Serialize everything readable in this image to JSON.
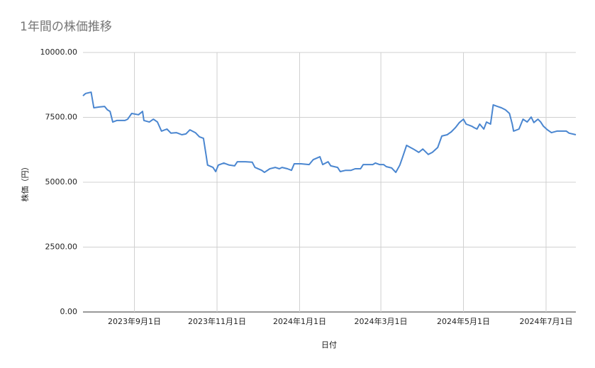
{
  "chart_data": {
    "type": "line",
    "title": "1年間の株価推移",
    "x_label": "日付",
    "y_label": "株価（円）",
    "x": [
      "2023-07-25",
      "2023-07-27",
      "2023-07-31",
      "2023-08-02",
      "2023-08-06",
      "2023-08-10",
      "2023-08-12",
      "2023-08-14",
      "2023-08-16",
      "2023-08-19",
      "2023-08-25",
      "2023-08-27",
      "2023-08-30",
      "2023-09-04",
      "2023-09-07",
      "2023-09-08",
      "2023-09-12",
      "2023-09-15",
      "2023-09-18",
      "2023-09-21",
      "2023-09-25",
      "2023-09-28",
      "2023-10-02",
      "2023-10-06",
      "2023-10-09",
      "2023-10-12",
      "2023-10-16",
      "2023-10-19",
      "2023-10-22",
      "2023-10-24",
      "2023-10-25",
      "2023-10-29",
      "2023-10-31",
      "2023-11-02",
      "2023-11-06",
      "2023-11-10",
      "2023-11-14",
      "2023-11-16",
      "2023-11-22",
      "2023-11-27",
      "2023-11-29",
      "2023-12-04",
      "2023-12-06",
      "2023-12-10",
      "2023-12-14",
      "2023-12-17",
      "2023-12-19",
      "2023-12-23",
      "2023-12-26",
      "2023-12-28",
      "2024-01-02",
      "2024-01-08",
      "2024-01-11",
      "2024-01-16",
      "2024-01-18",
      "2024-01-22",
      "2024-01-24",
      "2024-01-29",
      "2024-01-31",
      "2024-02-04",
      "2024-02-08",
      "2024-02-11",
      "2024-02-15",
      "2024-02-17",
      "2024-02-20",
      "2024-02-24",
      "2024-02-26",
      "2024-02-29",
      "2024-03-03",
      "2024-03-05",
      "2024-03-09",
      "2024-03-12",
      "2024-03-15",
      "2024-03-17",
      "2024-03-20",
      "2024-03-25",
      "2024-03-29",
      "2024-04-01",
      "2024-04-05",
      "2024-04-08",
      "2024-04-12",
      "2024-04-15",
      "2024-04-19",
      "2024-04-22",
      "2024-04-25",
      "2024-04-28",
      "2024-05-01",
      "2024-05-03",
      "2024-05-07",
      "2024-05-09",
      "2024-05-11",
      "2024-05-13",
      "2024-05-16",
      "2024-05-18",
      "2024-05-21",
      "2024-05-23",
      "2024-05-26",
      "2024-05-29",
      "2024-06-01",
      "2024-06-04",
      "2024-06-06",
      "2024-06-07",
      "2024-06-11",
      "2024-06-14",
      "2024-06-17",
      "2024-06-20",
      "2024-06-22",
      "2024-06-25",
      "2024-06-27",
      "2024-06-29",
      "2024-07-02",
      "2024-07-05",
      "2024-07-09",
      "2024-07-13",
      "2024-07-16",
      "2024-07-18",
      "2024-07-23"
    ],
    "series": [
      {
        "name": "株価",
        "color": "#4a86d0",
        "values": [
          8330,
          8420,
          8470,
          7870,
          7900,
          7920,
          7790,
          7730,
          7320,
          7380,
          7380,
          7430,
          7650,
          7600,
          7730,
          7380,
          7320,
          7430,
          7320,
          6970,
          7050,
          6890,
          6910,
          6830,
          6860,
          7020,
          6910,
          6750,
          6690,
          6010,
          5660,
          5570,
          5410,
          5660,
          5740,
          5660,
          5630,
          5790,
          5790,
          5770,
          5570,
          5460,
          5380,
          5520,
          5570,
          5520,
          5570,
          5520,
          5460,
          5710,
          5710,
          5680,
          5870,
          5980,
          5680,
          5790,
          5630,
          5570,
          5410,
          5460,
          5460,
          5520,
          5520,
          5680,
          5680,
          5680,
          5740,
          5680,
          5680,
          5600,
          5550,
          5380,
          5660,
          5960,
          6420,
          6280,
          6150,
          6280,
          6070,
          6150,
          6340,
          6780,
          6830,
          6940,
          7100,
          7300,
          7430,
          7240,
          7160,
          7100,
          7050,
          7240,
          7050,
          7320,
          7240,
          7980,
          7920,
          7870,
          7790,
          7650,
          7240,
          6970,
          7050,
          7430,
          7320,
          7510,
          7300,
          7430,
          7320,
          7160,
          7020,
          6910,
          6970,
          6970,
          6970,
          6890,
          6830
        ]
      }
    ],
    "xlim": [
      "2023-07-25",
      "2024-07-23"
    ],
    "xticks": [
      {
        "value": "2023-09-01",
        "label": "2023年9月1日"
      },
      {
        "value": "2023-11-01",
        "label": "2023年11月1日"
      },
      {
        "value": "2024-01-01",
        "label": "2024年1月1日"
      },
      {
        "value": "2024-03-01",
        "label": "2024年3月1日"
      },
      {
        "value": "2024-05-01",
        "label": "2024年5月1日"
      },
      {
        "value": "2024-07-01",
        "label": "2024年7月1日"
      }
    ],
    "ylim": [
      0,
      10000
    ],
    "yticks": [
      {
        "value": 0,
        "label": "0.00"
      },
      {
        "value": 2500,
        "label": "2500.00"
      },
      {
        "value": 5000,
        "label": "5000.00"
      },
      {
        "value": 7500,
        "label": "7500.00"
      },
      {
        "value": 10000,
        "label": "10000.00"
      }
    ],
    "grid": true
  }
}
